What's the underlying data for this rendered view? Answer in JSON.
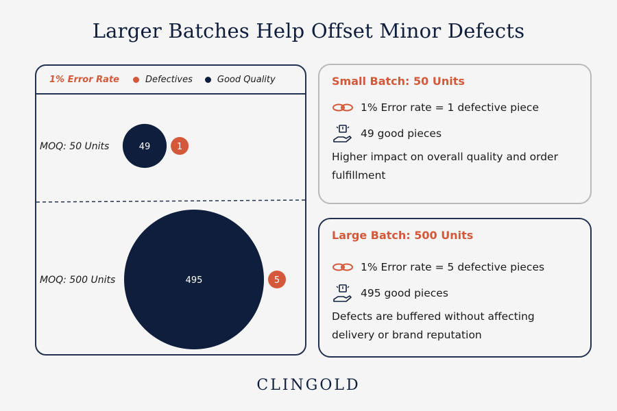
{
  "title": "Larger Batches Help Offset Minor Defects",
  "chart_data": {
    "type": "bubble",
    "legend": {
      "title": "1% Error Rate",
      "items": [
        {
          "label": "Defectives",
          "color": "#d3593a"
        },
        {
          "label": "Good Quality",
          "color": "#0f1e3d"
        }
      ]
    },
    "rows": [
      {
        "label": "MOQ: 50 Units",
        "good": 49,
        "defective": 1
      },
      {
        "label": "MOQ: 500 Units",
        "good": 495,
        "defective": 5
      }
    ]
  },
  "cards": {
    "small": {
      "heading": "Small Batch: 50 Units",
      "error_line": "1% Error rate = 1 defective piece",
      "good_line": "49 good pieces",
      "description": "Higher impact on overall quality and order fulfillment",
      "border_color": "#b9b9b9"
    },
    "large": {
      "heading": "Large Batch: 500 Units",
      "error_line": "1% Error rate = 5 defective pieces",
      "good_line": "495 good pieces",
      "description": "Defects are buffered without affecting delivery or brand reputation",
      "border_color": "#22314f"
    }
  },
  "icons": {
    "error": "chain-link-icon",
    "good": "hand-holding-box-icon"
  },
  "colors": {
    "accent": "#d3593a",
    "navy": "#0f1e3d"
  },
  "logo": "CLINGOLD"
}
